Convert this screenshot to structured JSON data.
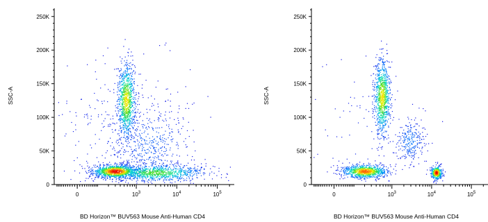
{
  "chart_data": [
    {
      "type": "scatter",
      "subtype": "flow-cytometry-density-dot-plot",
      "xlabel": "BD Horizon™ BUV563 Mouse Anti-Human CD4",
      "ylabel": "SSC-A",
      "x_scale": "biexponential",
      "x_ticks": [
        {
          "value": 0,
          "label": "0"
        },
        {
          "value": 1000,
          "label": "10",
          "sup": "3"
        },
        {
          "value": 10000,
          "label": "10",
          "sup": "4"
        },
        {
          "value": 100000,
          "label": "10",
          "sup": "5"
        }
      ],
      "y_ticks": [
        {
          "value": 0,
          "label": "0"
        },
        {
          "value": 50000,
          "label": "50K"
        },
        {
          "value": 100000,
          "label": "100K"
        },
        {
          "value": 150000,
          "label": "150K"
        },
        {
          "value": 200000,
          "label": "200K"
        },
        {
          "value": 250000,
          "label": "250K"
        }
      ],
      "ylim": [
        0,
        262144
      ],
      "clusters": [
        {
          "x": 300,
          "y": 20000,
          "sx": 0.28,
          "sy": 5000,
          "n": 1000,
          "peak": 1.0
        },
        {
          "x": 560,
          "y": 125000,
          "sx": 0.11,
          "sy": 28000,
          "n": 950,
          "peak": 0.75
        },
        {
          "x": 3000,
          "y": 18000,
          "sx": 0.6,
          "sy": 6000,
          "n": 950,
          "peak": 0.6
        },
        {
          "x": 2000,
          "y": 60000,
          "sx": 0.5,
          "sy": 28000,
          "n": 450,
          "peak": 0.15
        },
        {
          "x": 300,
          "y": 80000,
          "sx": 0.9,
          "sy": 55000,
          "n": 250,
          "peak": 0.05
        }
      ]
    },
    {
      "type": "scatter",
      "subtype": "flow-cytometry-density-dot-plot",
      "xlabel": "BD Horizon™ BUV563 Mouse Anti-Human CD4",
      "ylabel": "SSC-A",
      "x_scale": "biexponential",
      "x_ticks": [
        {
          "value": 0,
          "label": "0"
        },
        {
          "value": 1000,
          "label": "10",
          "sup": "3"
        },
        {
          "value": 10000,
          "label": "10",
          "sup": "4"
        },
        {
          "value": 100000,
          "label": "10",
          "sup": "5"
        }
      ],
      "y_ticks": [
        {
          "value": 0,
          "label": "0"
        },
        {
          "value": 50000,
          "label": "50K"
        },
        {
          "value": 100000,
          "label": "100K"
        },
        {
          "value": 150000,
          "label": "150K"
        },
        {
          "value": 200000,
          "label": "200K"
        },
        {
          "value": 250000,
          "label": "250K"
        }
      ],
      "ylim": [
        0,
        262144
      ],
      "clusters": [
        {
          "x": 200,
          "y": 20000,
          "sx": 0.28,
          "sy": 5000,
          "n": 900,
          "peak": 0.9
        },
        {
          "x": 560,
          "y": 130000,
          "sx": 0.1,
          "sy": 28000,
          "n": 900,
          "peak": 0.75
        },
        {
          "x": 2800,
          "y": 65000,
          "sx": 0.18,
          "sy": 16000,
          "n": 260,
          "peak": 0.2
        },
        {
          "x": 13000,
          "y": 18000,
          "sx": 0.07,
          "sy": 5000,
          "n": 380,
          "peak": 1.0
        },
        {
          "x": 300,
          "y": 70000,
          "sx": 0.8,
          "sy": 55000,
          "n": 90,
          "peak": 0.05
        }
      ]
    }
  ]
}
